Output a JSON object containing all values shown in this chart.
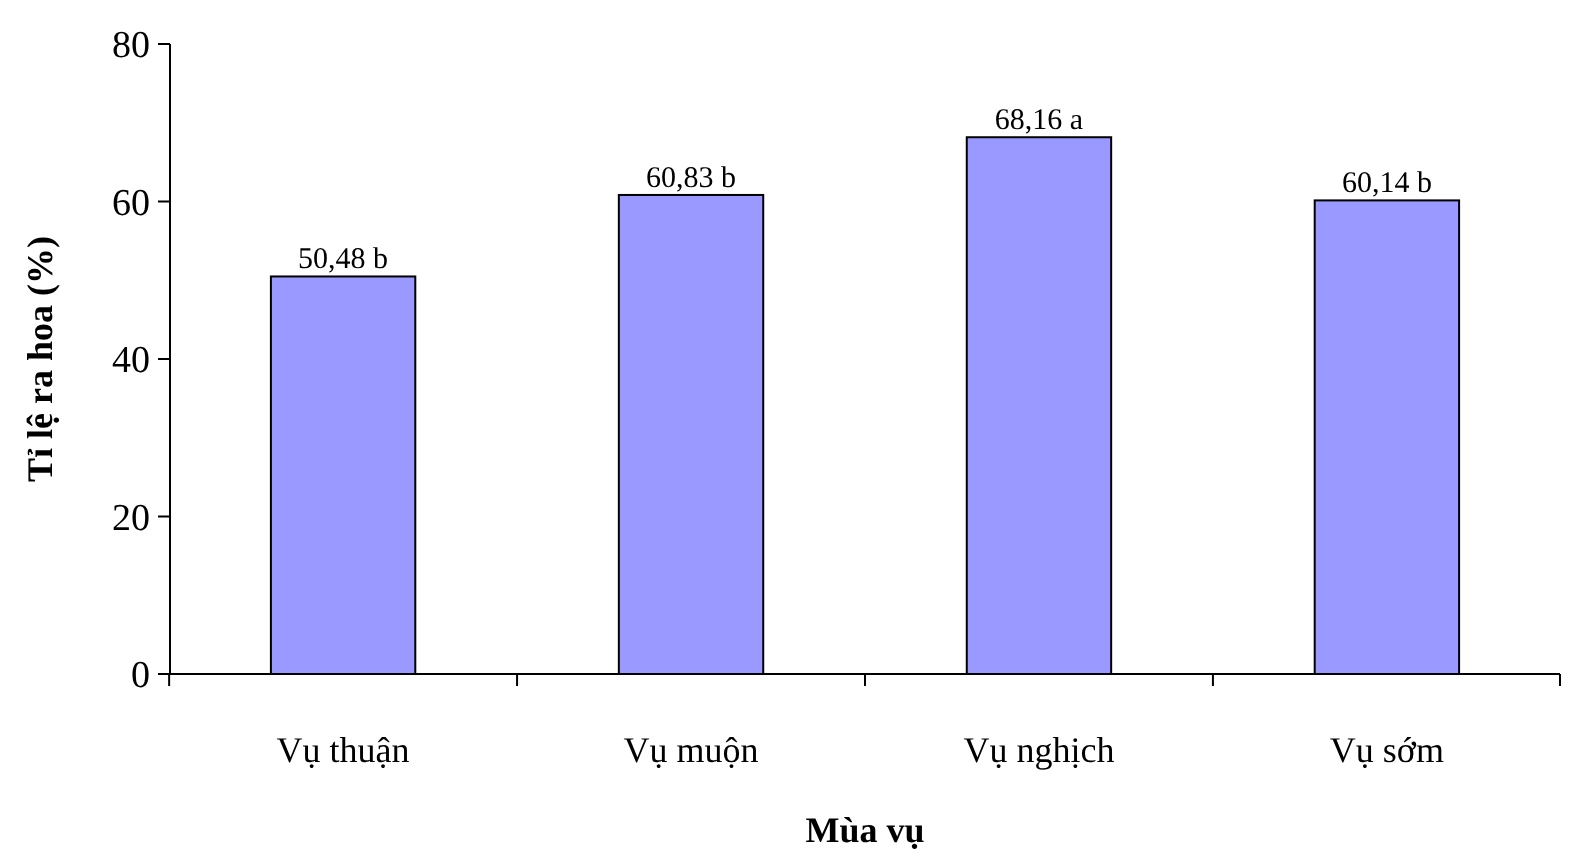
{
  "chart_data": {
    "type": "bar",
    "xlabel": "Mùa vụ",
    "ylabel": "Tỉ lệ ra hoa (%)",
    "categories": [
      "Vụ thuận",
      "Vụ muộn",
      "Vụ nghịch",
      "Vụ sớm"
    ],
    "values": [
      50.48,
      60.83,
      68.16,
      60.14
    ],
    "value_labels": [
      "50,48 b",
      "60,83 b",
      "68,16 a",
      "60,14 b"
    ],
    "color": "#9999ff",
    "ylim": [
      0,
      80
    ],
    "yticks": [
      0,
      20,
      40,
      60,
      80
    ],
    "grid": false
  }
}
